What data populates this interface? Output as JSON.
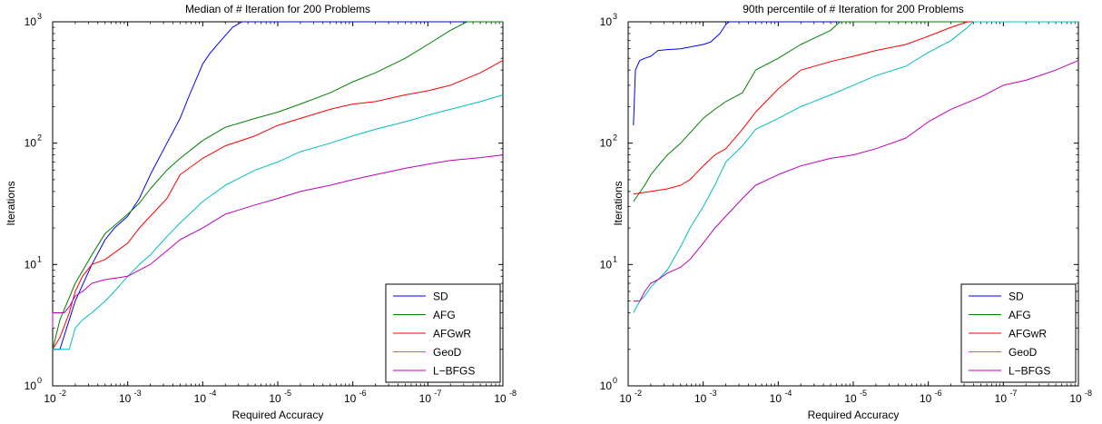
{
  "chart_data": [
    {
      "type": "line",
      "title": "Median of # Iteration for 200 Problems",
      "xlabel": "Required Accuracy",
      "ylabel": "Iterations",
      "x_scale": "log",
      "x_reversed": true,
      "y_scale": "log",
      "xlim": [
        0.01,
        1e-08
      ],
      "ylim": [
        1,
        1000
      ],
      "x_ticks": [
        {
          "value": 0.01,
          "base": "10",
          "exp": "-2"
        },
        {
          "value": 0.001,
          "base": "10",
          "exp": "-3"
        },
        {
          "value": 0.0001,
          "base": "10",
          "exp": "-4"
        },
        {
          "value": 1e-05,
          "base": "10",
          "exp": "-5"
        },
        {
          "value": 1e-06,
          "base": "10",
          "exp": "-6"
        },
        {
          "value": 1e-07,
          "base": "10",
          "exp": "-7"
        },
        {
          "value": 1e-08,
          "base": "10",
          "exp": "-8"
        }
      ],
      "y_ticks": [
        {
          "value": 1,
          "base": "10",
          "exp": "0"
        },
        {
          "value": 10,
          "base": "10",
          "exp": "1"
        },
        {
          "value": 100,
          "base": "10",
          "exp": "2"
        },
        {
          "value": 1000,
          "base": "10",
          "exp": "3"
        }
      ],
      "grid": false,
      "legend_position": "bottom-right",
      "series": [
        {
          "name": "SD",
          "color": "#0000ff",
          "points": [
            [
              0.012,
              2
            ],
            [
              0.008,
              2
            ],
            [
              0.006,
              3.5
            ],
            [
              0.005,
              5
            ],
            [
              0.003,
              10
            ],
            [
              0.002,
              16
            ],
            [
              0.0015,
              20
            ],
            [
              0.001,
              25
            ],
            [
              0.0007,
              35
            ],
            [
              0.0005,
              55
            ],
            [
              0.0003,
              100
            ],
            [
              0.0002,
              160
            ],
            [
              0.00015,
              250
            ],
            [
              0.0001,
              450
            ],
            [
              8e-05,
              550
            ],
            [
              6e-05,
              680
            ],
            [
              4e-05,
              900
            ],
            [
              3e-05,
              1000
            ],
            [
              1e-08,
              1000
            ]
          ]
        },
        {
          "name": "AFG",
          "color": "#008000",
          "points": [
            [
              0.012,
              2
            ],
            [
              0.008,
              3.5
            ],
            [
              0.005,
              7
            ],
            [
              0.003,
              12
            ],
            [
              0.002,
              18
            ],
            [
              0.001,
              26
            ],
            [
              0.0007,
              32
            ],
            [
              0.0005,
              42
            ],
            [
              0.0003,
              60
            ],
            [
              0.0002,
              75
            ],
            [
              0.0001,
              105
            ],
            [
              5e-05,
              135
            ],
            [
              2e-05,
              160
            ],
            [
              1e-05,
              180
            ],
            [
              5e-06,
              210
            ],
            [
              2e-06,
              260
            ],
            [
              1e-06,
              320
            ],
            [
              5e-07,
              380
            ],
            [
              2e-07,
              500
            ],
            [
              1e-07,
              650
            ],
            [
              5e-08,
              850
            ],
            [
              3e-08,
              1000
            ],
            [
              1e-08,
              1000
            ]
          ]
        },
        {
          "name": "AFGwR",
          "color": "#ff0000",
          "points": [
            [
              0.012,
              2
            ],
            [
              0.008,
              2.5
            ],
            [
              0.006,
              4
            ],
            [
              0.005,
              6
            ],
            [
              0.004,
              8
            ],
            [
              0.003,
              10
            ],
            [
              0.002,
              11
            ],
            [
              0.001,
              15
            ],
            [
              0.0007,
              20
            ],
            [
              0.0005,
              25
            ],
            [
              0.0003,
              35
            ],
            [
              0.0002,
              55
            ],
            [
              0.0001,
              75
            ],
            [
              5e-05,
              95
            ],
            [
              2e-05,
              115
            ],
            [
              1e-05,
              140
            ],
            [
              5e-06,
              160
            ],
            [
              2e-06,
              190
            ],
            [
              1e-06,
              210
            ],
            [
              5e-07,
              220
            ],
            [
              2e-07,
              250
            ],
            [
              1e-07,
              270
            ],
            [
              5e-08,
              300
            ],
            [
              2e-08,
              380
            ],
            [
              1e-08,
              480
            ]
          ]
        },
        {
          "name": "GeoD",
          "color": "#00bfbf",
          "points": [
            [
              0.012,
              2
            ],
            [
              0.006,
              2
            ],
            [
              0.005,
              3
            ],
            [
              0.004,
              3.5
            ],
            [
              0.003,
              4
            ],
            [
              0.002,
              5
            ],
            [
              0.0015,
              6
            ],
            [
              0.001,
              8
            ],
            [
              0.0007,
              10
            ],
            [
              0.0005,
              12
            ],
            [
              0.0003,
              17
            ],
            [
              0.0002,
              22
            ],
            [
              0.0001,
              33
            ],
            [
              5e-05,
              45
            ],
            [
              2e-05,
              60
            ],
            [
              1e-05,
              70
            ],
            [
              5e-06,
              85
            ],
            [
              2e-06,
              100
            ],
            [
              1e-06,
              115
            ],
            [
              5e-07,
              130
            ],
            [
              2e-07,
              150
            ],
            [
              1e-07,
              170
            ],
            [
              5e-08,
              190
            ],
            [
              2e-08,
              220
            ],
            [
              1e-08,
              250
            ]
          ]
        },
        {
          "name": "L−BFGS",
          "color": "#bf00bf",
          "points": [
            [
              0.012,
              3
            ],
            [
              0.01,
              4
            ],
            [
              0.007,
              4
            ],
            [
              0.006,
              4.5
            ],
            [
              0.005,
              5.5
            ],
            [
              0.004,
              6
            ],
            [
              0.003,
              7
            ],
            [
              0.002,
              7.5
            ],
            [
              0.001,
              8
            ],
            [
              0.0007,
              9
            ],
            [
              0.0005,
              10
            ],
            [
              0.0003,
              13
            ],
            [
              0.0002,
              16
            ],
            [
              0.0001,
              20
            ],
            [
              5e-05,
              26
            ],
            [
              2e-05,
              31
            ],
            [
              1e-05,
              35
            ],
            [
              5e-06,
              40
            ],
            [
              2e-06,
              45
            ],
            [
              1e-06,
              50
            ],
            [
              5e-07,
              55
            ],
            [
              2e-07,
              62
            ],
            [
              1e-07,
              67
            ],
            [
              5e-08,
              72
            ],
            [
              2e-08,
              76
            ],
            [
              1e-08,
              80
            ]
          ]
        }
      ]
    },
    {
      "type": "line",
      "title": "90th percentile of # Iteration for 200 Problems",
      "xlabel": "Required Accuracy",
      "ylabel": "Iterations",
      "x_scale": "log",
      "x_reversed": true,
      "y_scale": "log",
      "xlim": [
        0.01,
        1e-08
      ],
      "ylim": [
        1,
        1000
      ],
      "x_ticks": [
        {
          "value": 0.01,
          "base": "10",
          "exp": "-2"
        },
        {
          "value": 0.001,
          "base": "10",
          "exp": "-3"
        },
        {
          "value": 0.0001,
          "base": "10",
          "exp": "-4"
        },
        {
          "value": 1e-05,
          "base": "10",
          "exp": "-5"
        },
        {
          "value": 1e-06,
          "base": "10",
          "exp": "-6"
        },
        {
          "value": 1e-07,
          "base": "10",
          "exp": "-7"
        },
        {
          "value": 1e-08,
          "base": "10",
          "exp": "-8"
        }
      ],
      "y_ticks": [
        {
          "value": 1,
          "base": "10",
          "exp": "0"
        },
        {
          "value": 10,
          "base": "10",
          "exp": "1"
        },
        {
          "value": 100,
          "base": "10",
          "exp": "2"
        },
        {
          "value": 1000,
          "base": "10",
          "exp": "3"
        }
      ],
      "grid": false,
      "legend_position": "bottom-right",
      "series": [
        {
          "name": "SD",
          "color": "#0000ff",
          "points": [
            [
              0.0085,
              140
            ],
            [
              0.008,
              400
            ],
            [
              0.007,
              480
            ],
            [
              0.006,
              500
            ],
            [
              0.005,
              520
            ],
            [
              0.004,
              580
            ],
            [
              0.003,
              590
            ],
            [
              0.002,
              600
            ],
            [
              0.001,
              650
            ],
            [
              0.0008,
              680
            ],
            [
              0.0006,
              800
            ],
            [
              0.0005,
              950
            ],
            [
              0.00045,
              1000
            ],
            [
              1e-08,
              1000
            ]
          ]
        },
        {
          "name": "AFG",
          "color": "#008000",
          "points": [
            [
              0.0085,
              33
            ],
            [
              0.006,
              45
            ],
            [
              0.005,
              55
            ],
            [
              0.004,
              65
            ],
            [
              0.003,
              80
            ],
            [
              0.002,
              100
            ],
            [
              0.001,
              160
            ],
            [
              0.0007,
              190
            ],
            [
              0.0005,
              220
            ],
            [
              0.0003,
              260
            ],
            [
              0.0002,
              400
            ],
            [
              0.0001,
              500
            ],
            [
              5e-05,
              650
            ],
            [
              2e-05,
              850
            ],
            [
              1.5e-05,
              1000
            ],
            [
              1e-08,
              1000
            ]
          ]
        },
        {
          "name": "AFGwR",
          "color": "#ff0000",
          "points": [
            [
              0.0085,
              38
            ],
            [
              0.005,
              40
            ],
            [
              0.003,
              42
            ],
            [
              0.002,
              45
            ],
            [
              0.0015,
              50
            ],
            [
              0.001,
              65
            ],
            [
              0.0007,
              80
            ],
            [
              0.0005,
              90
            ],
            [
              0.0003,
              130
            ],
            [
              0.0002,
              180
            ],
            [
              0.0001,
              280
            ],
            [
              5e-05,
              400
            ],
            [
              2e-05,
              470
            ],
            [
              1e-05,
              520
            ],
            [
              5e-06,
              580
            ],
            [
              2e-06,
              650
            ],
            [
              1e-06,
              760
            ],
            [
              5e-07,
              900
            ],
            [
              3e-07,
              1000
            ],
            [
              1e-08,
              1000
            ]
          ]
        },
        {
          "name": "GeoD",
          "color": "#00bfbf",
          "points": [
            [
              0.0085,
              4
            ],
            [
              0.007,
              5
            ],
            [
              0.006,
              5.5
            ],
            [
              0.005,
              6.5
            ],
            [
              0.004,
              7.5
            ],
            [
              0.003,
              9
            ],
            [
              0.0025,
              11
            ],
            [
              0.002,
              14
            ],
            [
              0.0015,
              20
            ],
            [
              0.001,
              30
            ],
            [
              0.0007,
              45
            ],
            [
              0.0005,
              70
            ],
            [
              0.0003,
              95
            ],
            [
              0.0002,
              130
            ],
            [
              0.0001,
              160
            ],
            [
              5e-05,
              200
            ],
            [
              2e-05,
              250
            ],
            [
              1e-05,
              300
            ],
            [
              5e-06,
              360
            ],
            [
              2e-06,
              430
            ],
            [
              1e-06,
              560
            ],
            [
              5e-07,
              700
            ],
            [
              3e-07,
              900
            ],
            [
              2.5e-07,
              1000
            ],
            [
              1e-08,
              1000
            ]
          ]
        },
        {
          "name": "L−BFGS",
          "color": "#bf00bf",
          "points": [
            [
              0.0085,
              5
            ],
            [
              0.007,
              5
            ],
            [
              0.006,
              6
            ],
            [
              0.005,
              7
            ],
            [
              0.004,
              7.5
            ],
            [
              0.003,
              8.5
            ],
            [
              0.002,
              9.5
            ],
            [
              0.0015,
              11
            ],
            [
              0.001,
              15
            ],
            [
              0.0007,
              20
            ],
            [
              0.0005,
              25
            ],
            [
              0.0003,
              35
            ],
            [
              0.0002,
              45
            ],
            [
              0.0001,
              55
            ],
            [
              5e-05,
              65
            ],
            [
              2e-05,
              75
            ],
            [
              1e-05,
              80
            ],
            [
              5e-06,
              90
            ],
            [
              2e-06,
              110
            ],
            [
              1e-06,
              150
            ],
            [
              5e-07,
              190
            ],
            [
              2e-07,
              240
            ],
            [
              1e-07,
              300
            ],
            [
              5e-08,
              330
            ],
            [
              2e-08,
              400
            ],
            [
              1e-08,
              480
            ]
          ]
        }
      ]
    }
  ]
}
